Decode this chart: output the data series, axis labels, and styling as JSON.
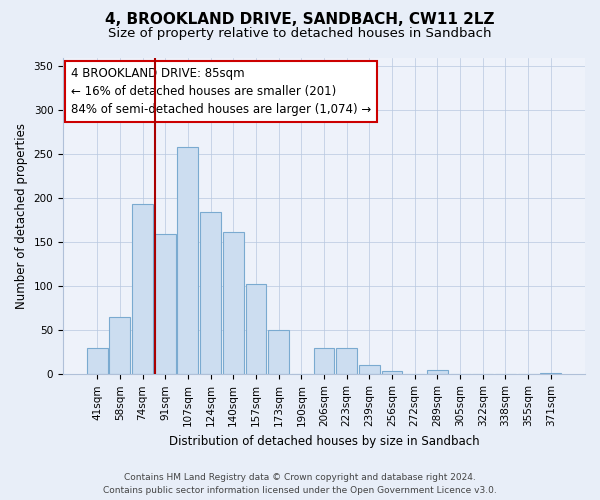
{
  "title": "4, BROOKLAND DRIVE, SANDBACH, CW11 2LZ",
  "subtitle": "Size of property relative to detached houses in Sandbach",
  "xlabel": "Distribution of detached houses by size in Sandbach",
  "ylabel": "Number of detached properties",
  "bar_labels": [
    "41sqm",
    "58sqm",
    "74sqm",
    "91sqm",
    "107sqm",
    "124sqm",
    "140sqm",
    "157sqm",
    "173sqm",
    "190sqm",
    "206sqm",
    "223sqm",
    "239sqm",
    "256sqm",
    "272sqm",
    "289sqm",
    "305sqm",
    "322sqm",
    "338sqm",
    "355sqm",
    "371sqm"
  ],
  "bar_values": [
    30,
    65,
    193,
    160,
    258,
    184,
    162,
    103,
    50,
    0,
    30,
    30,
    11,
    4,
    0,
    5,
    0,
    0,
    0,
    0,
    2
  ],
  "bar_color": "#ccddf0",
  "bar_edge_color": "#7aaad0",
  "vline_color": "#aa0000",
  "annotation_text": "4 BROOKLAND DRIVE: 85sqm\n← 16% of detached houses are smaller (201)\n84% of semi-detached houses are larger (1,074) →",
  "annotation_box_color": "#ffffff",
  "annotation_box_edge": "#cc0000",
  "ylim": [
    0,
    360
  ],
  "yticks": [
    0,
    50,
    100,
    150,
    200,
    250,
    300,
    350
  ],
  "footer_line1": "Contains HM Land Registry data © Crown copyright and database right 2024.",
  "footer_line2": "Contains public sector information licensed under the Open Government Licence v3.0.",
  "bg_color": "#e8eef8",
  "plot_bg_color": "#eef2fa",
  "title_fontsize": 11,
  "subtitle_fontsize": 9.5,
  "annotation_fontsize": 8.5,
  "footer_fontsize": 6.5,
  "ylabel_fontsize": 8.5,
  "xlabel_fontsize": 8.5,
  "tick_fontsize": 7.5
}
